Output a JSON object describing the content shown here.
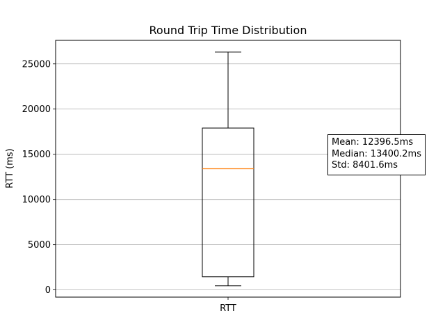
{
  "chart_data": {
    "type": "box",
    "title": "Round Trip Time Distribution",
    "xlabel": "",
    "ylabel": "RTT (ms)",
    "categories": [
      "RTT"
    ],
    "boxes": [
      {
        "name": "RTT",
        "whisker_low": 450,
        "q1": 1450,
        "median": 13400.2,
        "q3": 17900,
        "whisker_high": 26300
      }
    ],
    "ylim": [
      -800,
      27600
    ],
    "yticks": [
      0,
      5000,
      10000,
      15000,
      20000,
      25000
    ],
    "ytick_labels": [
      "0",
      "5000",
      "10000",
      "15000",
      "20000",
      "25000"
    ],
    "grid": "y-major",
    "median_color": "#ff7f0e",
    "annotation": {
      "lines": [
        "Mean: 12396.5ms",
        "Median: 13400.2ms",
        "Std: 8401.6ms"
      ],
      "placement": "right-middle"
    }
  }
}
